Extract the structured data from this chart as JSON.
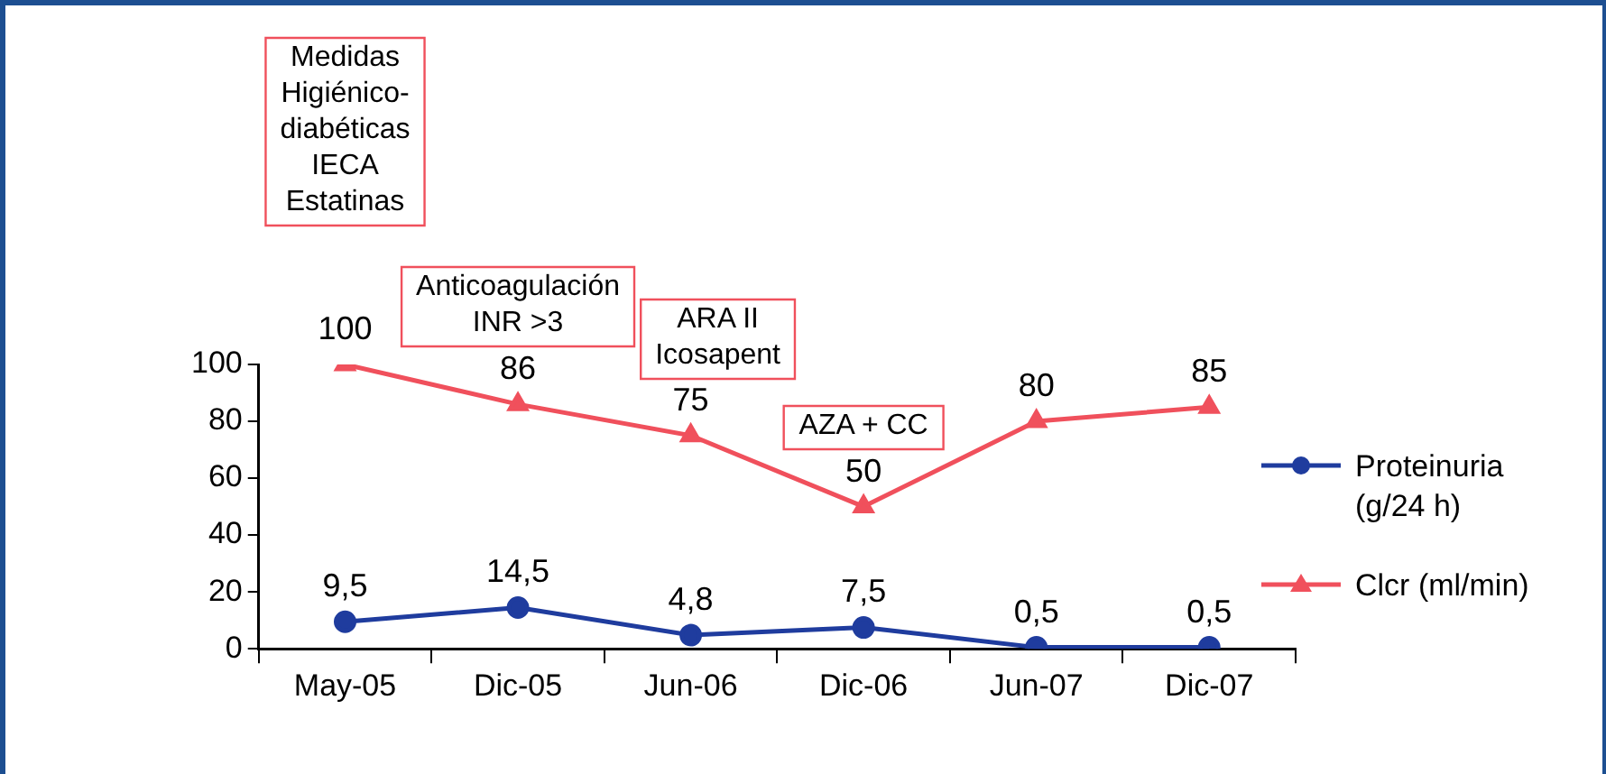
{
  "chart_data": {
    "type": "line",
    "categories": [
      "May-05",
      "Dic-05",
      "Jun-06",
      "Dic-06",
      "Jun-07",
      "Dic-07"
    ],
    "series": [
      {
        "name": "Proteinuria\n(g/24 h)",
        "color": "#1f3c9e",
        "marker": "circle",
        "values": [
          9.5,
          14.5,
          4.8,
          7.5,
          0.5,
          0.5
        ],
        "value_labels": [
          "9,5",
          "14,5",
          "4,8",
          "7,5",
          "0,5",
          "0,5"
        ]
      },
      {
        "name": "Clcr (ml/min)",
        "color": "#f0505c",
        "marker": "triangle",
        "values": [
          100,
          86,
          75,
          50,
          80,
          85
        ],
        "value_labels": [
          "100",
          "86",
          "75",
          "50",
          "80",
          "85"
        ]
      }
    ],
    "ylim": [
      0,
      100
    ],
    "yticks": [
      0,
      20,
      40,
      60,
      80,
      100
    ],
    "grid": false,
    "legend": "right",
    "line_style": "solid",
    "annotations": [
      "Medidas\nHigiénico-\ndiabéticas\nIECA\nEstatinas",
      "Anticoagulación\nINR >3",
      "ARA II\nIcosapent",
      "AZA + CC"
    ]
  }
}
